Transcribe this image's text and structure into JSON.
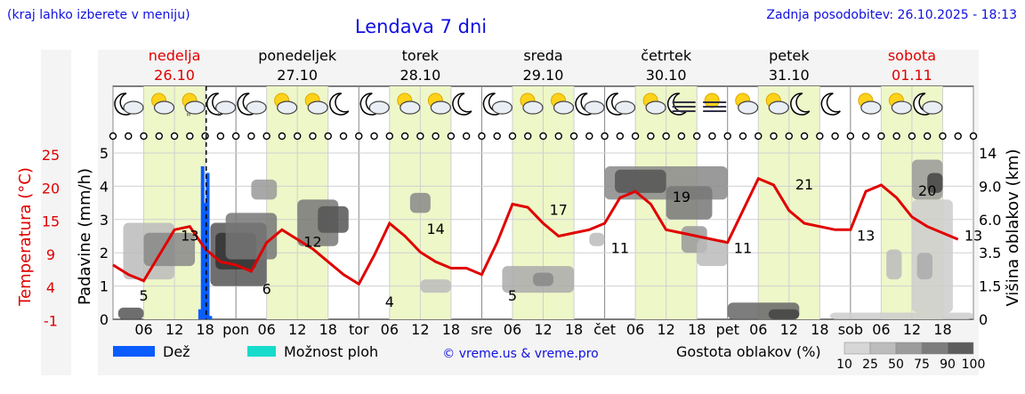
{
  "header": {
    "hint": "(kraj lahko izberete v meniju)",
    "title": "Lendava 7 dni",
    "updated": "Zadnja posodobitev: 26.10.2025 - 18:13"
  },
  "days": [
    {
      "name": "nedelja",
      "date": "26.10",
      "weekend": true
    },
    {
      "name": "ponedeljek",
      "date": "27.10",
      "weekend": false
    },
    {
      "name": "torek",
      "date": "28.10",
      "weekend": false
    },
    {
      "name": "sreda",
      "date": "29.10",
      "weekend": false
    },
    {
      "name": "četrtek",
      "date": "30.10",
      "weekend": false
    },
    {
      "name": "petek",
      "date": "31.10",
      "weekend": false
    },
    {
      "name": "sobota",
      "date": "01.11",
      "weekend": true
    }
  ],
  "x_tick_labels": [
    "06",
    "12",
    "18",
    "pon",
    "06",
    "12",
    "18",
    "tor",
    "06",
    "12",
    "18",
    "sre",
    "06",
    "12",
    "18",
    "čet",
    "06",
    "12",
    "18",
    "pet",
    "06",
    "12",
    "18",
    "sob",
    "06",
    "12",
    "18"
  ],
  "axes": {
    "left_outer": {
      "label": "Temperatura (°C)",
      "ticks": [
        "25",
        "20",
        "15",
        "9",
        "4",
        "-1"
      ],
      "color": "#e00000"
    },
    "left_inner": {
      "label": "Padavine (mm/h)",
      "ticks": [
        "5",
        "4",
        "3",
        "2",
        "1",
        "0"
      ]
    },
    "right": {
      "label": "Višina oblakov (km)",
      "ticks": [
        "14",
        "9.0",
        "6.0",
        "3.5",
        "1.5",
        "0"
      ]
    }
  },
  "legend": {
    "rain": {
      "label": "Dež",
      "color": "#0a5cff"
    },
    "chance": {
      "label": "Možnost ploh",
      "color": "#17dccb"
    },
    "credit": "© vreme.us & vreme.pro",
    "density_title": "Gostota oblakov (%)",
    "density_values": [
      "10",
      "25",
      "50",
      "75",
      "90",
      "100"
    ]
  },
  "weather_icons": [
    "night-partly-cloudy-icon",
    "partly-cloudy-icon",
    "partly-cloudy-drizzle-icon",
    "night-cloudy-drizzle-icon",
    "night-partly-cloudy-icon",
    "sun-cloud-icon",
    "partly-cloudy-icon",
    "night-icon",
    "night-partly-cloudy-icon",
    "sun-cloud-icon",
    "partly-cloudy-icon",
    "night-icon",
    "night-partly-cloudy-icon",
    "sun-cloud-icon",
    "partly-cloudy-icon",
    "night-cloudy-icon",
    "night-cloudy-icon",
    "sun-cloud-icon",
    "night-fog-icon",
    "fog-icon",
    "sun-cloud-icon",
    "partly-cloudy-icon",
    "night-icon",
    "night-icon",
    "sun-cloud-icon",
    "partly-cloudy-icon",
    "night-cloudy-icon"
  ],
  "chart_data": {
    "type": "line",
    "title": "Lendava 7 dni",
    "x_unit": "hours from 26.10 00:00",
    "series": [
      {
        "name": "Temperatura (°C)",
        "color": "#e00000",
        "x": [
          0,
          3,
          6,
          9,
          12,
          15,
          18,
          21,
          24,
          27,
          30,
          33,
          36,
          39,
          42,
          45,
          48,
          51,
          54,
          57,
          60,
          63,
          66,
          69,
          72,
          75,
          78,
          81,
          84,
          87,
          90,
          93,
          96,
          99,
          102,
          105,
          108,
          111,
          114,
          117,
          120,
          123,
          126,
          129,
          132,
          135,
          138,
          141,
          144,
          147,
          150,
          153,
          156,
          159,
          165
        ],
        "y": [
          7.5,
          6,
          5,
          9,
          13,
          13.5,
          10,
          8,
          7.5,
          6.5,
          11,
          13,
          11.5,
          10,
          8,
          6,
          4.5,
          9,
          14,
          12,
          9.5,
          8,
          7,
          7,
          6,
          11,
          17,
          16.5,
          14,
          12,
          12.5,
          13,
          14,
          18,
          19,
          17,
          13,
          12.5,
          12,
          11.5,
          11,
          16,
          21,
          20,
          16,
          14,
          13.5,
          13,
          13,
          19,
          20,
          18,
          15,
          13.5,
          11.5
        ],
        "labels": [
          {
            "x": 6,
            "y": 5,
            "text": "5"
          },
          {
            "x": 15,
            "y": 13,
            "text": "13"
          },
          {
            "x": 30,
            "y": 6,
            "text": "6"
          },
          {
            "x": 39,
            "y": 12,
            "text": "12"
          },
          {
            "x": 54,
            "y": 4,
            "text": "4"
          },
          {
            "x": 63,
            "y": 14,
            "text": "14"
          },
          {
            "x": 78,
            "y": 5,
            "text": "5"
          },
          {
            "x": 87,
            "y": 17,
            "text": "17"
          },
          {
            "x": 99,
            "y": 11,
            "text": "11"
          },
          {
            "x": 111,
            "y": 19,
            "text": "19"
          },
          {
            "x": 123,
            "y": 11,
            "text": "11"
          },
          {
            "x": 135,
            "y": 21,
            "text": "21"
          },
          {
            "x": 147,
            "y": 13,
            "text": "13"
          },
          {
            "x": 159,
            "y": 20,
            "text": "20"
          },
          {
            "x": 168,
            "y": 13,
            "text": "13"
          }
        ]
      },
      {
        "name": "Dež",
        "type": "bar",
        "color": "#0a5cff",
        "x": [
          17,
          17.5,
          18,
          18.5,
          19
        ],
        "y": [
          0.3,
          4.6,
          3.5,
          4.4,
          0.1
        ]
      }
    ],
    "ylim_temperature": [
      -1,
      25
    ],
    "ylim_precip": [
      0,
      5
    ],
    "ylim_cloud_height": [
      0,
      14
    ],
    "current_time_x": 18.2,
    "legend_placement": "bottom",
    "cloud_density_present": true
  }
}
